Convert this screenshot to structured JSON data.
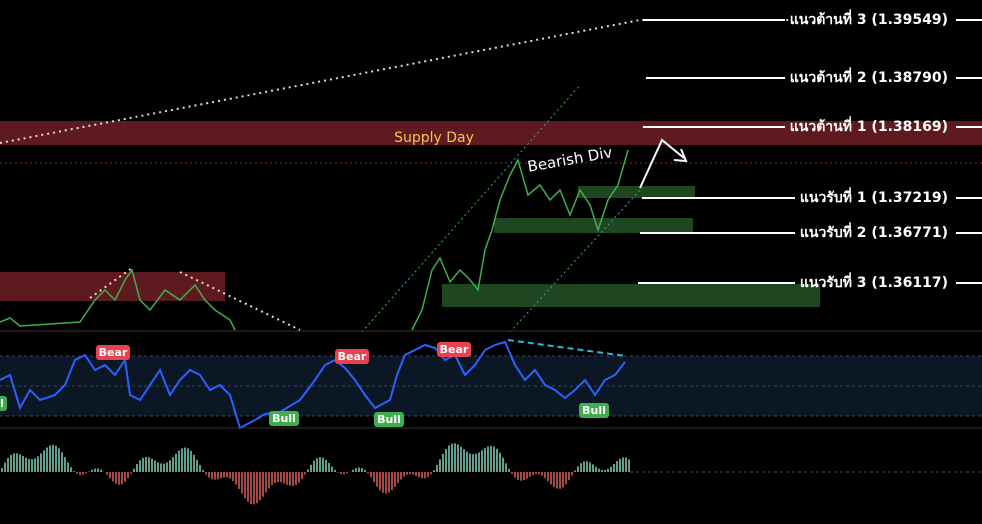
{
  "zones": {
    "supply_day": "Supply Day"
  },
  "annotations": {
    "bearish_div": "Bearish Div"
  },
  "resistance": [
    "แนวต้านที่ 3 (1.39549)",
    "แนวต้านที่ 2 (1.38790)",
    "แนวต้านที่ 1 (1.38169)"
  ],
  "support": [
    "แนวรับที่ 1 (1.37219)",
    "แนวรับที่ 2 (1.36771)",
    "แนวรับที่ 3 (1.36117)"
  ],
  "signals": {
    "bear": [
      "Bear",
      "Bear",
      "Bear"
    ],
    "bull": [
      "Bull",
      "Bull",
      "Bull",
      "Bull"
    ]
  }
}
